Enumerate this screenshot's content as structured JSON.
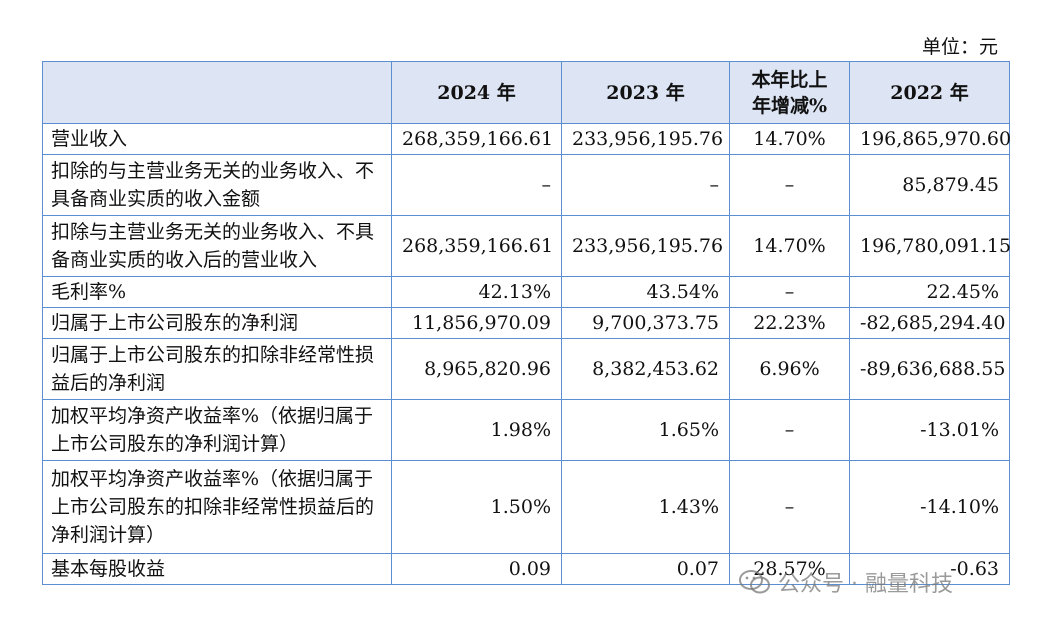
{
  "unit_label": "单位：元",
  "headers": [
    "",
    "2024 年",
    "2023 年",
    "本年比上\n年增减%",
    "2022 年"
  ],
  "rows": [
    {
      "label": "营业收入",
      "v2024": "268,359,166.61",
      "v2023": "233,956,195.76",
      "change": "14.70%",
      "v2022": "196,865,970.60"
    },
    {
      "label": "扣除的与主营业务无关的业务收入、不具备商业实质的收入金额",
      "v2024": "–",
      "v2023": "–",
      "change": "–",
      "v2022": "85,879.45"
    },
    {
      "label": "扣除与主营业务无关的业务收入、不具备商业实质的收入后的营业收入",
      "v2024": "268,359,166.61",
      "v2023": "233,956,195.76",
      "change": "14.70%",
      "v2022": "196,780,091.15"
    },
    {
      "label": "毛利率%",
      "v2024": "42.13%",
      "v2023": "43.54%",
      "change": "–",
      "v2022": "22.45%"
    },
    {
      "label": "归属于上市公司股东的净利润",
      "v2024": "11,856,970.09",
      "v2023": "9,700,373.75",
      "change": "22.23%",
      "v2022": "-82,685,294.40"
    },
    {
      "label": "归属于上市公司股东的扣除非经常性损益后的净利润",
      "v2024": "8,965,820.96",
      "v2023": "8,382,453.62",
      "change": "6.96%",
      "v2022": "-89,636,688.55"
    },
    {
      "label": "加权平均净资产收益率%（依据归属于上市公司股东的净利润计算）",
      "v2024": "1.98%",
      "v2023": "1.65%",
      "change": "–",
      "v2022": "-13.01%"
    },
    {
      "label": "加权平均净资产收益率%（依据归属于上市公司股东的扣除非经常性损益后的净利润计算）",
      "v2024": "1.50%",
      "v2023": "1.43%",
      "change": "–",
      "v2022": "-14.10%"
    },
    {
      "label": "基本每股收益",
      "v2024": "0.09",
      "v2023": "0.07",
      "change": "28.57%",
      "v2022": "-0.63"
    }
  ],
  "watermark": {
    "text": "公众号 · 融量科技",
    "icon": "wechat-icon"
  }
}
